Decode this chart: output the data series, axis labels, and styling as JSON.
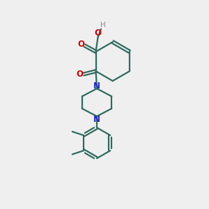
{
  "bg_color": "#efefef",
  "bond_color": "#2d6b5e",
  "N_color": "#2222cc",
  "O_color": "#cc0000",
  "H_color": "#888888",
  "line_width": 1.6,
  "font_size": 8.5,
  "xlim": [
    0,
    10
  ],
  "ylim": [
    0,
    10
  ]
}
